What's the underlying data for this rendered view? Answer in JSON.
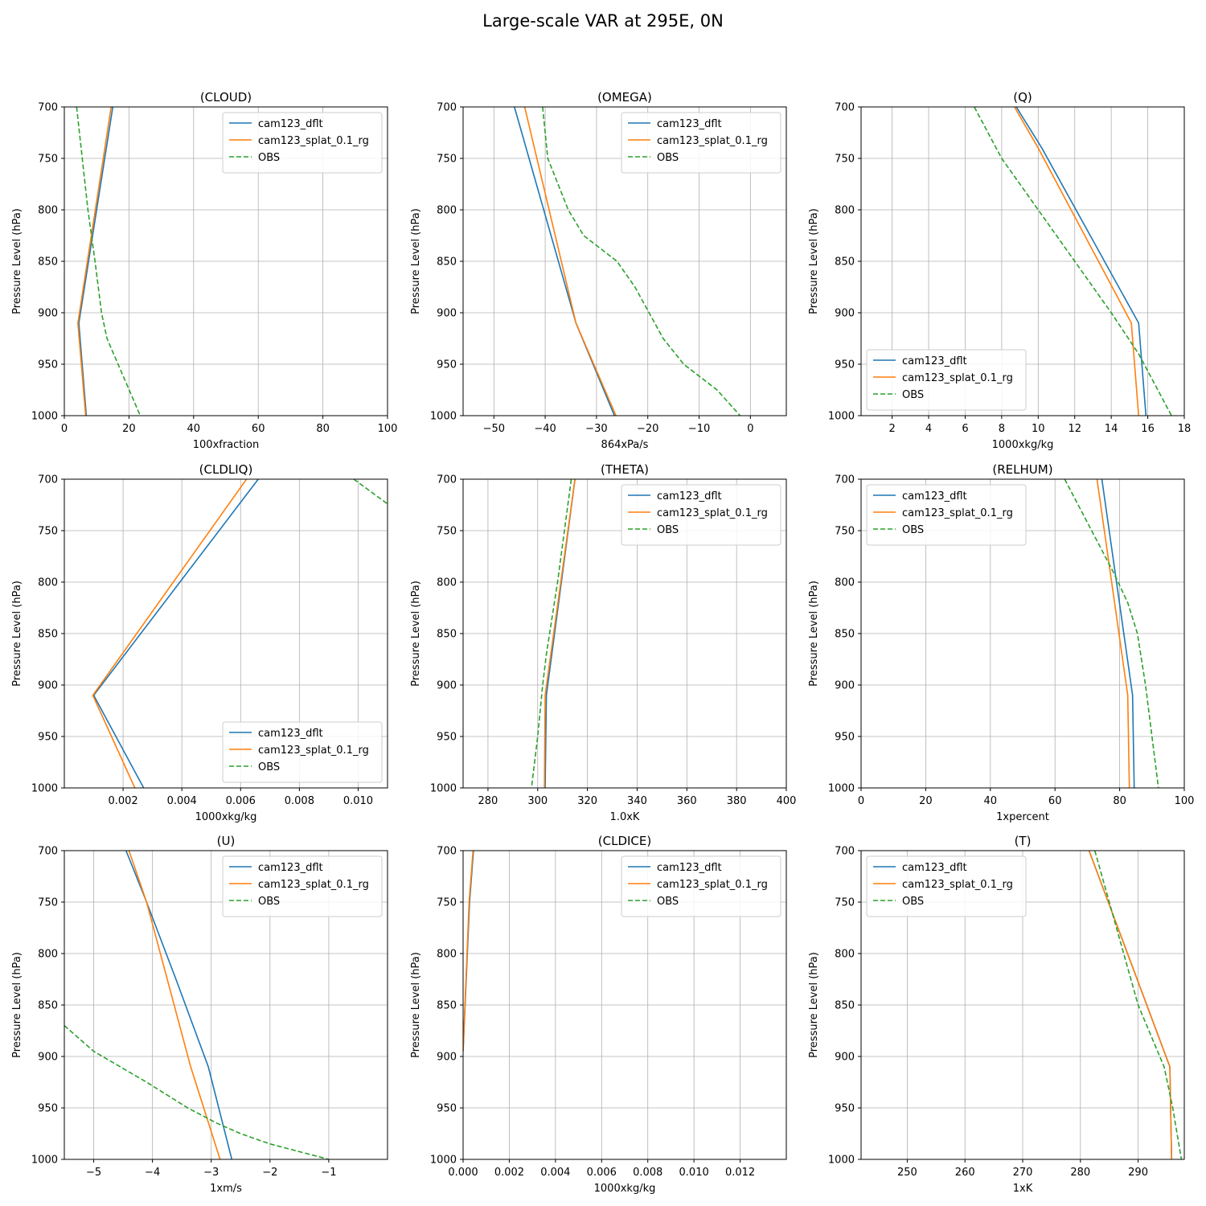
{
  "figure": {
    "title": "Large-scale VAR at 295E, 0N"
  },
  "colors": {
    "dflt": "#1f77b4",
    "splat": "#ff7f0e",
    "obs": "#2ca02c"
  },
  "chart_data": [
    {
      "type": "line",
      "title": "(CLOUD)",
      "xlabel": "100xfraction",
      "ylabel": "Pressure Level (hPa)",
      "xlim": [
        0,
        100
      ],
      "ylim": [
        1000,
        700
      ],
      "xticks": [
        0,
        20,
        40,
        60,
        80,
        100
      ],
      "xtick_labels": [
        "0",
        "20",
        "40",
        "60",
        "80",
        "100"
      ],
      "yticks": [
        700,
        750,
        800,
        850,
        900,
        950,
        1000
      ],
      "ytick_labels": [
        "700",
        "750",
        "800",
        "850",
        "900",
        "950",
        "1000"
      ],
      "legend": "upper right",
      "series": [
        {
          "name": "cam123_dflt",
          "style": "solid",
          "x": [
            15,
            4.5,
            6.8
          ],
          "y": [
            700,
            910,
            1000
          ]
        },
        {
          "name": "cam123_splat_0.1_rg",
          "style": "solid",
          "x": [
            14.5,
            4.2,
            6.6
          ],
          "y": [
            700,
            910,
            1000
          ]
        },
        {
          "name": "OBS",
          "style": "dashed",
          "x": [
            3.8,
            7.3,
            9.5,
            11.5,
            13.2,
            18,
            23.5
          ],
          "y": [
            700,
            800,
            850,
            900,
            925,
            960,
            1000
          ]
        }
      ]
    },
    {
      "type": "line",
      "title": "(OMEGA)",
      "xlabel": "864xPa/s",
      "ylabel": "Pressure Level (hPa)",
      "xlim": [
        -56,
        7
      ],
      "ylim": [
        1000,
        700
      ],
      "xticks": [
        -50,
        -40,
        -30,
        -20,
        -10,
        0
      ],
      "xtick_labels": [
        "−50",
        "−40",
        "−30",
        "−20",
        "−10",
        "0"
      ],
      "yticks": [
        700,
        750,
        800,
        850,
        900,
        950,
        1000
      ],
      "ytick_labels": [
        "700",
        "750",
        "800",
        "850",
        "900",
        "950",
        "1000"
      ],
      "legend": "upper right",
      "series": [
        {
          "name": "cam123_dflt",
          "style": "solid",
          "x": [
            -46,
            -34,
            -26.5
          ],
          "y": [
            700,
            910,
            1000
          ]
        },
        {
          "name": "cam123_splat_0.1_rg",
          "style": "solid",
          "x": [
            -44,
            -34,
            -26.2
          ],
          "y": [
            700,
            910,
            1000
          ]
        },
        {
          "name": "OBS",
          "style": "dashed",
          "x": [
            -40.5,
            -39.5,
            -35.5,
            -32.5,
            -26,
            -22.5,
            -17,
            -13,
            -6.5,
            -2
          ],
          "y": [
            700,
            750,
            800,
            825,
            850,
            875,
            925,
            950,
            975,
            1000
          ]
        }
      ]
    },
    {
      "type": "line",
      "title": "(Q)",
      "xlabel": "1000xkg/kg",
      "ylabel": "Pressure Level (hPa)",
      "xlim": [
        0.3,
        18
      ],
      "ylim": [
        1000,
        700
      ],
      "xticks": [
        2,
        4,
        6,
        8,
        10,
        12,
        14,
        16,
        18
      ],
      "xtick_labels": [
        "2",
        "4",
        "6",
        "8",
        "10",
        "12",
        "14",
        "16",
        "18"
      ],
      "yticks": [
        700,
        750,
        800,
        850,
        900,
        950,
        1000
      ],
      "ytick_labels": [
        "700",
        "750",
        "800",
        "850",
        "900",
        "950",
        "1000"
      ],
      "legend": "lower left",
      "series": [
        {
          "name": "cam123_dflt",
          "style": "solid",
          "x": [
            8.8,
            10.2,
            15.5,
            15.9
          ],
          "y": [
            700,
            740,
            910,
            1000
          ]
        },
        {
          "name": "cam123_splat_0.1_rg",
          "style": "solid",
          "x": [
            8.7,
            10,
            15.1,
            15.5
          ],
          "y": [
            700,
            740,
            910,
            1000
          ]
        },
        {
          "name": "OBS",
          "style": "dashed",
          "x": [
            6.5,
            8,
            10,
            12,
            14,
            15.5,
            17.3
          ],
          "y": [
            700,
            750,
            800,
            850,
            900,
            940,
            1000
          ]
        }
      ]
    },
    {
      "type": "line",
      "title": "(CLDLIQ)",
      "xlabel": "1000xkg/kg",
      "ylabel": "Pressure Level (hPa)",
      "xlim": [
        0,
        0.011
      ],
      "ylim": [
        1000,
        700
      ],
      "xticks": [
        0.002,
        0.004,
        0.006,
        0.008,
        0.01
      ],
      "xtick_labels": [
        "0.002",
        "0.004",
        "0.006",
        "0.008",
        "0.010"
      ],
      "yticks": [
        700,
        750,
        800,
        850,
        900,
        950,
        1000
      ],
      "ytick_labels": [
        "700",
        "750",
        "800",
        "850",
        "900",
        "950",
        "1000"
      ],
      "legend": "lower right",
      "series": [
        {
          "name": "cam123_dflt",
          "style": "solid",
          "x": [
            0.0066,
            0.001,
            0.0027
          ],
          "y": [
            700,
            910,
            1000
          ]
        },
        {
          "name": "cam123_splat_0.1_rg",
          "style": "solid",
          "x": [
            0.0062,
            0.00097,
            0.0024
          ],
          "y": [
            700,
            910,
            1000
          ]
        },
        {
          "name": "OBS",
          "style": "dashed",
          "x": [
            0.00985,
            0.011
          ],
          "y": [
            700,
            724
          ]
        }
      ]
    },
    {
      "type": "line",
      "title": "(THETA)",
      "xlabel": "1.0xK",
      "ylabel": "Pressure Level (hPa)",
      "xlim": [
        270,
        400
      ],
      "ylim": [
        1000,
        700
      ],
      "xticks": [
        280,
        300,
        320,
        340,
        360,
        380,
        400
      ],
      "xtick_labels": [
        "280",
        "300",
        "320",
        "340",
        "360",
        "380",
        "400"
      ],
      "yticks": [
        700,
        750,
        800,
        850,
        900,
        950,
        1000
      ],
      "ytick_labels": [
        "700",
        "750",
        "800",
        "850",
        "900",
        "950",
        "1000"
      ],
      "legend": "upper right",
      "series": [
        {
          "name": "cam123_dflt",
          "style": "solid",
          "x": [
            315,
            303.5,
            303
          ],
          "y": [
            700,
            910,
            1000
          ]
        },
        {
          "name": "cam123_splat_0.1_rg",
          "style": "solid",
          "x": [
            315,
            303,
            302.7
          ],
          "y": [
            700,
            910,
            1000
          ]
        },
        {
          "name": "OBS",
          "style": "dashed",
          "x": [
            313.5,
            308,
            303.5,
            302,
            300,
            297.5
          ],
          "y": [
            700,
            800,
            870,
            900,
            950,
            1000
          ]
        }
      ]
    },
    {
      "type": "line",
      "title": "(RELHUM)",
      "xlabel": "1xpercent",
      "ylabel": "Pressure Level (hPa)",
      "xlim": [
        0,
        100
      ],
      "ylim": [
        1000,
        700
      ],
      "xticks": [
        0,
        20,
        40,
        60,
        80,
        100
      ],
      "xtick_labels": [
        "0",
        "20",
        "40",
        "60",
        "80",
        "100"
      ],
      "yticks": [
        700,
        750,
        800,
        850,
        900,
        950,
        1000
      ],
      "ytick_labels": [
        "700",
        "750",
        "800",
        "850",
        "900",
        "950",
        "1000"
      ],
      "legend": "upper left",
      "series": [
        {
          "name": "cam123_dflt",
          "style": "solid",
          "x": [
            74.5,
            84,
            84.5
          ],
          "y": [
            700,
            910,
            1000
          ]
        },
        {
          "name": "cam123_splat_0.1_rg",
          "style": "solid",
          "x": [
            73,
            82.5,
            83
          ],
          "y": [
            700,
            910,
            1000
          ]
        },
        {
          "name": "OBS",
          "style": "dashed",
          "x": [
            63,
            68,
            73,
            78,
            82.5,
            85.5,
            88,
            90,
            92
          ],
          "y": [
            700,
            730,
            760,
            790,
            820,
            850,
            900,
            950,
            1000
          ]
        }
      ]
    },
    {
      "type": "line",
      "title": "(U)",
      "xlabel": "1xm/s",
      "ylabel": "Pressure Level (hPa)",
      "xlim": [
        -5.5,
        0
      ],
      "ylim": [
        1000,
        700
      ],
      "xticks": [
        -5,
        -4,
        -3,
        -2,
        -1
      ],
      "xtick_labels": [
        "−5",
        "−4",
        "−3",
        "−2",
        "−1"
      ],
      "yticks": [
        700,
        750,
        800,
        850,
        900,
        950,
        1000
      ],
      "ytick_labels": [
        "700",
        "750",
        "800",
        "850",
        "900",
        "950",
        "1000"
      ],
      "legend": "upper right",
      "series": [
        {
          "name": "cam123_dflt",
          "style": "solid",
          "x": [
            -4.45,
            -4.1,
            -3.6,
            -3.05,
            -2.65
          ],
          "y": [
            700,
            750,
            825,
            910,
            1000
          ]
        },
        {
          "name": "cam123_splat_0.1_rg",
          "style": "solid",
          "x": [
            -4.4,
            -4.1,
            -3.35,
            -2.85
          ],
          "y": [
            700,
            750,
            910,
            1000
          ]
        },
        {
          "name": "OBS",
          "style": "dashed",
          "x": [
            -5.5,
            -5,
            -4.1,
            -3.4,
            -2.9,
            -2.5,
            -2,
            -1
          ],
          "y": [
            870,
            895,
            925,
            950,
            965,
            975,
            985,
            1000
          ]
        }
      ]
    },
    {
      "type": "line",
      "title": "(CLDICE)",
      "xlabel": "1000xkg/kg",
      "ylabel": "Pressure Level (hPa)",
      "xlim": [
        0,
        0.014
      ],
      "ylim": [
        1000,
        700
      ],
      "xticks": [
        0,
        0.002,
        0.004,
        0.006,
        0.008,
        0.01,
        0.012
      ],
      "xtick_labels": [
        "0.000",
        "0.002",
        "0.004",
        "0.006",
        "0.008",
        "0.010",
        "0.012"
      ],
      "yticks": [
        700,
        750,
        800,
        850,
        900,
        950,
        1000
      ],
      "ytick_labels": [
        "700",
        "750",
        "800",
        "850",
        "900",
        "950",
        "1000"
      ],
      "legend": "upper right",
      "series": [
        {
          "name": "cam123_dflt",
          "style": "solid",
          "x": [
            0.00045,
            0.00028,
            0
          ],
          "y": [
            700,
            750,
            895
          ]
        },
        {
          "name": "cam123_splat_0.1_rg",
          "style": "solid",
          "x": [
            0.00043,
            0.00026,
            0
          ],
          "y": [
            700,
            750,
            895
          ]
        },
        {
          "name": "OBS",
          "style": "dashed",
          "x": [],
          "y": []
        }
      ]
    },
    {
      "type": "line",
      "title": "(T)",
      "xlabel": "1xK",
      "ylabel": "Pressure Level (hPa)",
      "xlim": [
        242,
        298
      ],
      "ylim": [
        1000,
        700
      ],
      "xticks": [
        250,
        260,
        270,
        280,
        290
      ],
      "xtick_labels": [
        "250",
        "260",
        "270",
        "280",
        "290"
      ],
      "yticks": [
        700,
        750,
        800,
        850,
        900,
        950,
        1000
      ],
      "ytick_labels": [
        "700",
        "750",
        "800",
        "850",
        "900",
        "950",
        "1000"
      ],
      "legend": "upper left",
      "series": [
        {
          "name": "cam123_dflt",
          "style": "solid",
          "x": [
            281.5,
            295.5,
            295.8
          ],
          "y": [
            700,
            910,
            1000
          ]
        },
        {
          "name": "cam123_splat_0.1_rg",
          "style": "solid",
          "x": [
            281.5,
            295.5,
            295.8
          ],
          "y": [
            700,
            910,
            1000
          ]
        },
        {
          "name": "OBS",
          "style": "dashed",
          "x": [
            282.5,
            290,
            294.5,
            296,
            297.5
          ],
          "y": [
            700,
            850,
            910,
            950,
            1000
          ]
        }
      ]
    }
  ]
}
